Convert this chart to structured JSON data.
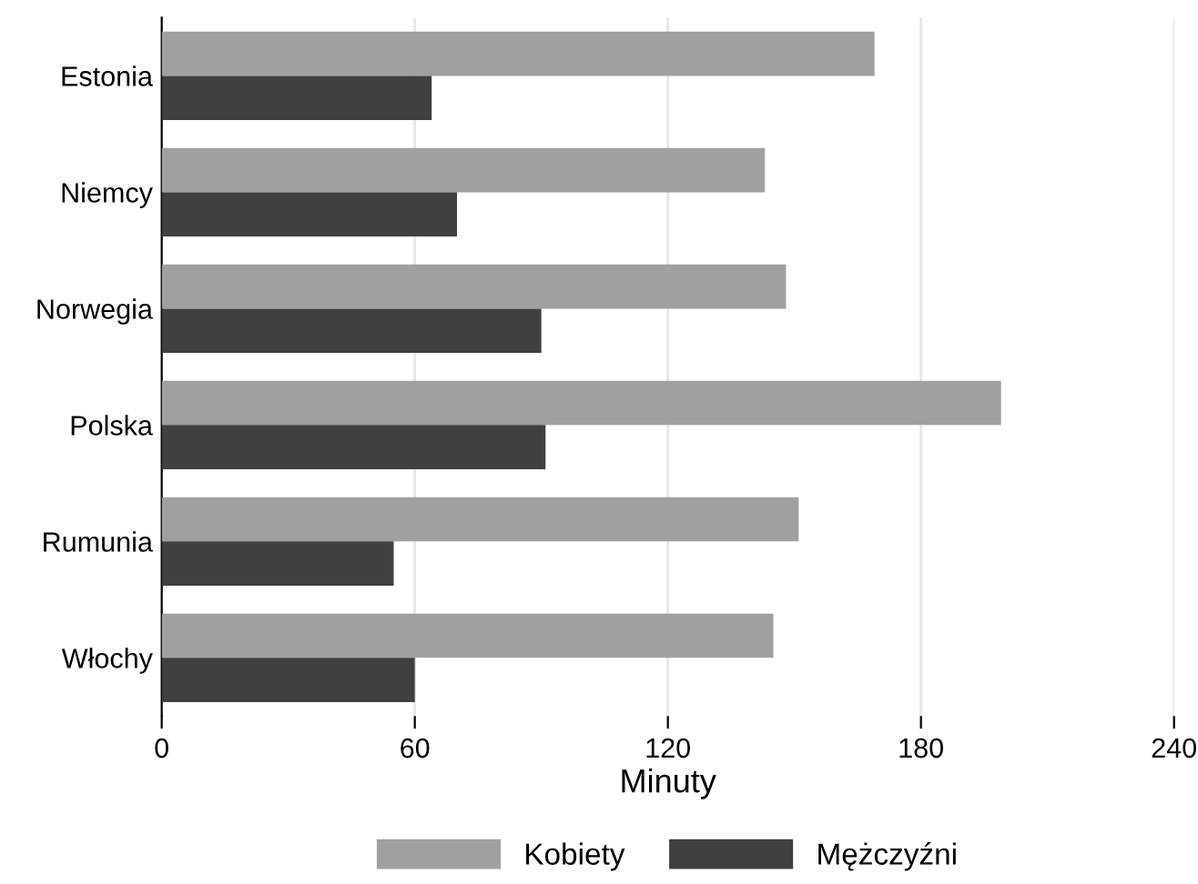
{
  "chart_data": {
    "type": "bar",
    "orientation": "horizontal",
    "xlabel": "Minuty",
    "categories": [
      "Estonia",
      "Niemcy",
      "Norwegia",
      "Polska",
      "Rumunia",
      "Włochy"
    ],
    "series": [
      {
        "name": "Kobiety",
        "color": "#a0a0a0",
        "values": [
          169,
          143,
          148,
          199,
          151,
          145
        ]
      },
      {
        "name": "Mężczyźni",
        "color": "#404040",
        "values": [
          64,
          70,
          90,
          91,
          55,
          60
        ]
      }
    ],
    "xlim": [
      0,
      240
    ],
    "xticks": [
      0,
      60,
      120,
      180,
      240
    ],
    "grid": "x",
    "legend": "bottom"
  }
}
